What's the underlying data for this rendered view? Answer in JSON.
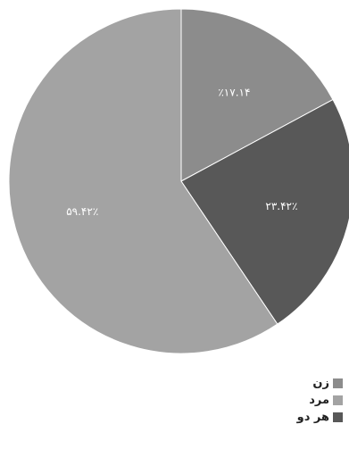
{
  "chart_data": {
    "type": "pie",
    "slices": [
      {
        "name": "زن",
        "value": 17.14,
        "label": "٪۱۷.۱۴",
        "color": "#8c8c8c"
      },
      {
        "name": "هر دو",
        "value": 23.42,
        "label": "۲۳.۴۲٪",
        "color": "#585858"
      },
      {
        "name": "مرد",
        "value": 59.42,
        "label": "۵۹.۴۲٪",
        "color": "#a3a3a3"
      }
    ],
    "start_angle": "12 o'clock",
    "direction": "clockwise",
    "legend": {
      "position": "bottom-right",
      "items": [
        {
          "label": "زن",
          "color": "#8c8c8c"
        },
        {
          "label": "مرد",
          "color": "#a3a3a3"
        },
        {
          "label": "هر دو",
          "color": "#585858"
        }
      ]
    }
  }
}
